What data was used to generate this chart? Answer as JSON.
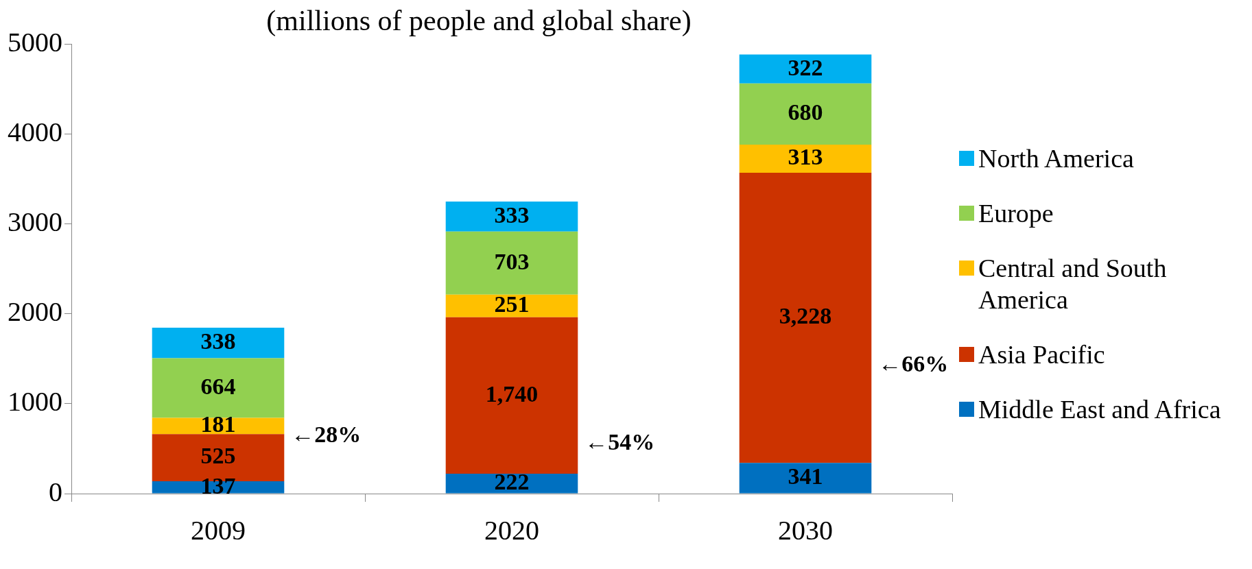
{
  "chart_data": {
    "type": "bar",
    "title": "(millions of people and global share)",
    "categories": [
      "2009",
      "2020",
      "2030"
    ],
    "series": [
      {
        "name": "Middle East and Africa",
        "color": "#0070c0",
        "values": [
          137,
          222,
          341
        ],
        "value_labels": [
          "137",
          "222",
          "341"
        ]
      },
      {
        "name": "Asia Pacific",
        "color": "#cc3300",
        "values": [
          525,
          1740,
          3228
        ],
        "value_labels": [
          "525",
          "1,740",
          "3,228"
        ]
      },
      {
        "name": "Central and South America",
        "color": "#ffc000",
        "values": [
          181,
          251,
          313
        ],
        "value_labels": [
          "181",
          "251",
          "313"
        ]
      },
      {
        "name": "Europe",
        "color": "#92d050",
        "values": [
          664,
          703,
          680
        ],
        "value_labels": [
          "664",
          "703",
          "680"
        ]
      },
      {
        "name": "North America",
        "color": "#00b0f0",
        "values": [
          338,
          333,
          322
        ],
        "value_labels": [
          "338",
          "333",
          "322"
        ]
      }
    ],
    "stacked": true,
    "ylim": [
      0,
      5000
    ],
    "yticks": [
      0,
      1000,
      2000,
      3000,
      4000,
      5000
    ],
    "grid": false,
    "legend": "right",
    "annotations": [
      "←28%",
      "←54%",
      "←66%"
    ]
  }
}
